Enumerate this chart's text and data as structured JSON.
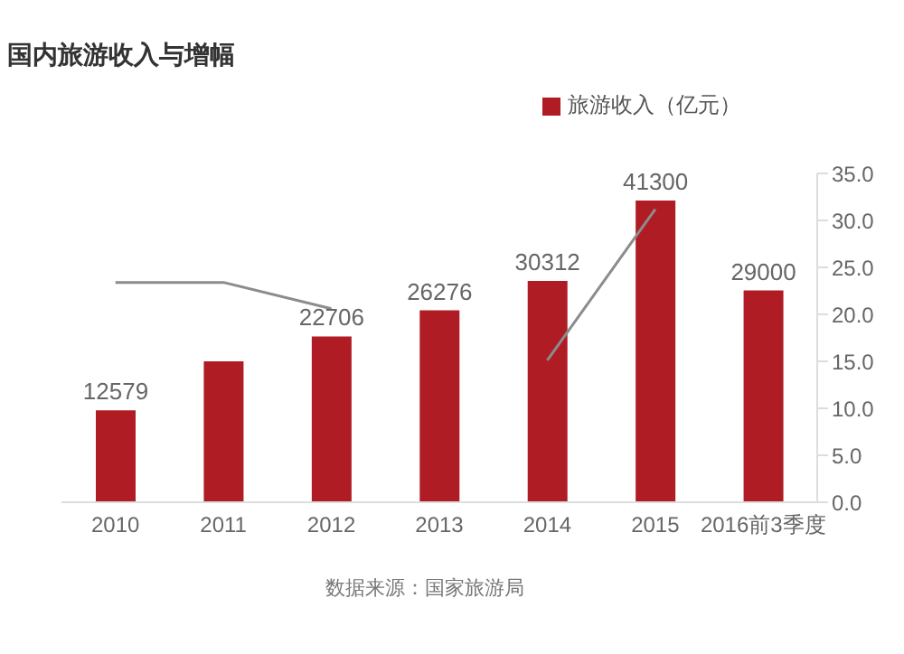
{
  "chart_data": {
    "type": "bar",
    "title": "国内旅游收入与增幅",
    "categories": [
      "2010",
      "2011",
      "2012",
      "2013",
      "2014",
      "2015",
      "2016前3季度"
    ],
    "series": [
      {
        "name": "旅游收入（亿元）",
        "color": "#b01c24",
        "values": [
          12579,
          19300,
          22706,
          26276,
          30312,
          41300,
          29000
        ],
        "value_labels": [
          "12579",
          null,
          "22706",
          "26276",
          "30312",
          "41300",
          "29000"
        ]
      },
      {
        "type": "line",
        "color": "#8c8c8c",
        "axis": "y2",
        "values": [
          23.4,
          23.4,
          20.6,
          null,
          15.1,
          31.2,
          null
        ]
      }
    ],
    "y2lim": [
      0,
      35
    ],
    "y2ticks": [
      {
        "value": 0,
        "label": "0.0"
      },
      {
        "value": 5,
        "label": "5.0"
      },
      {
        "value": 10,
        "label": "10.0"
      },
      {
        "value": 15,
        "label": "15.0"
      },
      {
        "value": 20,
        "label": "20.0"
      },
      {
        "value": 25,
        "label": "25.0"
      },
      {
        "value": 30,
        "label": "30.0"
      },
      {
        "value": 35,
        "label": "35.0"
      }
    ],
    "legend": "top right",
    "marker": "none",
    "grid": false,
    "annotations": [
      "数据来源：国家旅游局"
    ]
  }
}
